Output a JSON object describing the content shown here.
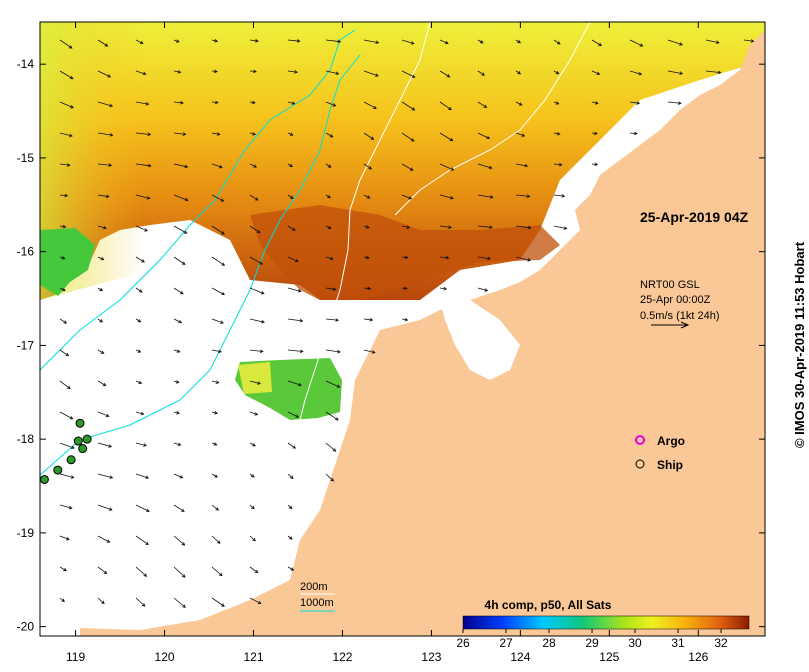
{
  "map": {
    "timestamp": "25-Apr-2019 04Z",
    "credit": "© IMOS 30-Apr-2019 11:53 Hobart",
    "current_info": {
      "model": "NRT00 GSL",
      "time": "25-Apr 00:00Z",
      "scale": "0.5m/s (1kt 24h)"
    },
    "legend": {
      "argo": "Argo",
      "ship": "Ship"
    },
    "isobaths": {
      "shallow": "200m",
      "deep": "1000m"
    },
    "colorbar": {
      "title": "4h comp, p50, All Sats",
      "ticks": [
        "26",
        "27",
        "28",
        "29",
        "30",
        "31",
        "32"
      ]
    },
    "axes": {
      "lon_ticks": [
        "119",
        "120",
        "121",
        "122",
        "123",
        "124",
        "125",
        "126"
      ],
      "lat_ticks": [
        "-14",
        "-15",
        "-16",
        "-17",
        "-18",
        "-19",
        "-20"
      ],
      "lon_range": [
        118.6,
        126.75
      ],
      "lat_range": [
        -20.1,
        -13.55
      ]
    },
    "colors": {
      "land": "#fac896",
      "ocean_nodata": "#ffffff",
      "sst_low": "#f2ee2a",
      "sst_high": "#a83808",
      "isobath_200": "#ffffff",
      "isobath_1000": "#00dede",
      "argo": "#e000e0",
      "ship_track": "#2a9a2a"
    },
    "ship_positions": [
      {
        "lon": 118.65,
        "lat": -18.43
      },
      {
        "lon": 118.8,
        "lat": -18.33
      },
      {
        "lon": 118.95,
        "lat": -18.22
      },
      {
        "lon": 119.08,
        "lat": -18.1
      },
      {
        "lon": 119.03,
        "lat": -18.02
      },
      {
        "lon": 119.13,
        "lat": -18.0
      },
      {
        "lon": 119.05,
        "lat": -17.83
      }
    ]
  }
}
